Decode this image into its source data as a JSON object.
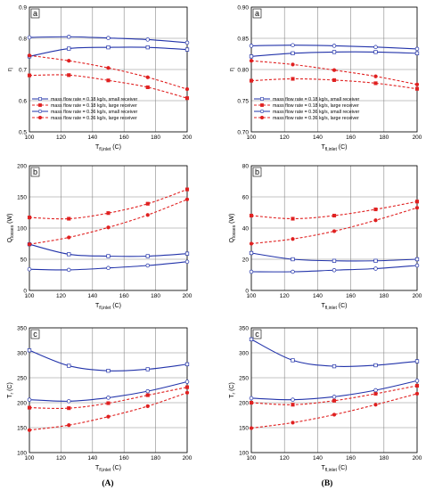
{
  "colors": {
    "blue": "#2233aa",
    "red": "#e02020",
    "grid": "#888888"
  },
  "column_labels": [
    "(A)",
    "(B)"
  ],
  "chart_data": [
    {
      "type": "line",
      "panel_tag": "a",
      "xlabel_main": "T",
      "xlabel_sub": "fl,inlet",
      "xlabel_unit": "(C)",
      "ylabel_main": "η",
      "ylabel_sub": "",
      "ylabel_unit": "",
      "xlim": [
        100,
        200
      ],
      "xticks": [
        100,
        120,
        140,
        160,
        180,
        200
      ],
      "ylim": [
        0.5,
        0.9
      ],
      "yticks": [
        0.5,
        0.6,
        0.7,
        0.8,
        0.9
      ],
      "ytick_labels": [
        "0.5",
        "0.6",
        "0.7",
        "0.8",
        "0.9"
      ],
      "grid": true,
      "legend": "bottom-left",
      "series": [
        {
          "name": "mass flow rate = 0.18 kg/s, small receiver",
          "color": "blue",
          "dash": false,
          "marker": "square",
          "x": [
            100,
            125,
            150,
            175,
            200
          ],
          "y": [
            0.742,
            0.767,
            0.771,
            0.771,
            0.764
          ]
        },
        {
          "name": "mass flow rate = 0.18 kg/s, large receiver",
          "color": "red",
          "dash": true,
          "marker": "square",
          "x": [
            100,
            125,
            150,
            175,
            200
          ],
          "y": [
            0.681,
            0.682,
            0.665,
            0.643,
            0.608
          ]
        },
        {
          "name": "mass flow rate = 0.36 kg/s, small receiver",
          "color": "blue",
          "dash": false,
          "marker": "circle",
          "x": [
            100,
            125,
            150,
            175,
            200
          ],
          "y": [
            0.803,
            0.805,
            0.801,
            0.796,
            0.786
          ]
        },
        {
          "name": "mass flow rate = 0.36 kg/s, large receiver",
          "color": "red",
          "dash": true,
          "marker": "circle",
          "x": [
            100,
            125,
            150,
            175,
            200
          ],
          "y": [
            0.745,
            0.728,
            0.705,
            0.675,
            0.637
          ]
        }
      ]
    },
    {
      "type": "line",
      "panel_tag": "a",
      "xlabel_main": "T",
      "xlabel_sub": "fl,inlet",
      "xlabel_unit": "(C)",
      "ylabel_main": "η",
      "ylabel_sub": "",
      "ylabel_unit": "",
      "xlim": [
        100,
        200
      ],
      "xticks": [
        100,
        120,
        140,
        160,
        180,
        200
      ],
      "ylim": [
        0.7,
        0.9
      ],
      "yticks": [
        0.7,
        0.75,
        0.8,
        0.85,
        0.9
      ],
      "ytick_labels": [
        "0.70",
        "0.75",
        "0.80",
        "0.85",
        "0.90"
      ],
      "grid": true,
      "legend": "bottom-left",
      "series": [
        {
          "name": "mass flow rate = 0.18 kg/s, small receiver",
          "color": "blue",
          "dash": false,
          "marker": "square",
          "x": [
            100,
            125,
            150,
            175,
            200
          ],
          "y": [
            0.821,
            0.826,
            0.828,
            0.828,
            0.826
          ]
        },
        {
          "name": "mass flow rate = 0.18 kg/s, large receiver",
          "color": "red",
          "dash": true,
          "marker": "square",
          "x": [
            100,
            125,
            150,
            175,
            200
          ],
          "y": [
            0.782,
            0.785,
            0.783,
            0.778,
            0.769
          ]
        },
        {
          "name": "mass flow rate = 0.36 kg/s, small receiver",
          "color": "blue",
          "dash": false,
          "marker": "circle",
          "x": [
            100,
            125,
            150,
            175,
            200
          ],
          "y": [
            0.838,
            0.839,
            0.838,
            0.836,
            0.833
          ]
        },
        {
          "name": "mass flow rate = 0.36 kg/s, large receiver",
          "color": "red",
          "dash": true,
          "marker": "circle",
          "x": [
            100,
            125,
            150,
            175,
            200
          ],
          "y": [
            0.814,
            0.808,
            0.799,
            0.789,
            0.776
          ]
        }
      ]
    },
    {
      "type": "line",
      "panel_tag": "b",
      "xlabel_main": "T",
      "xlabel_sub": "fl,inlet",
      "xlabel_unit": "(C)",
      "ylabel_main": "Q",
      "ylabel_sub": "losses",
      "ylabel_unit": "(W)",
      "xlim": [
        100,
        200
      ],
      "xticks": [
        100,
        120,
        140,
        160,
        180,
        200
      ],
      "ylim": [
        0,
        200
      ],
      "yticks": [
        0,
        50,
        100,
        150,
        200
      ],
      "ytick_labels": [
        "0",
        "50",
        "100",
        "150",
        "200"
      ],
      "grid": true,
      "legend": "none",
      "series": [
        {
          "color": "blue",
          "dash": false,
          "marker": "square",
          "x": [
            100,
            125,
            150,
            175,
            200
          ],
          "y": [
            74,
            58,
            55,
            55,
            59
          ]
        },
        {
          "color": "red",
          "dash": true,
          "marker": "square",
          "x": [
            100,
            125,
            150,
            175,
            200
          ],
          "y": [
            117,
            115,
            124,
            139,
            162
          ]
        },
        {
          "color": "blue",
          "dash": false,
          "marker": "circle",
          "x": [
            100,
            125,
            150,
            175,
            200
          ],
          "y": [
            34,
            33,
            36,
            40,
            46
          ]
        },
        {
          "color": "red",
          "dash": true,
          "marker": "circle",
          "x": [
            100,
            125,
            150,
            175,
            200
          ],
          "y": [
            74,
            85,
            101,
            121,
            146
          ]
        }
      ]
    },
    {
      "type": "line",
      "panel_tag": "b",
      "xlabel_main": "T",
      "xlabel_sub": "fl,inlet",
      "xlabel_unit": "(C)",
      "ylabel_main": "Q",
      "ylabel_sub": "losses",
      "ylabel_unit": "(W)",
      "xlim": [
        100,
        200
      ],
      "xticks": [
        100,
        120,
        140,
        160,
        180,
        200
      ],
      "ylim": [
        0,
        80
      ],
      "yticks": [
        0,
        20,
        40,
        60,
        80
      ],
      "ytick_labels": [
        "0",
        "20",
        "40",
        "60",
        "80"
      ],
      "grid": true,
      "legend": "none",
      "series": [
        {
          "color": "blue",
          "dash": false,
          "marker": "square",
          "x": [
            100,
            125,
            150,
            175,
            200
          ],
          "y": [
            24,
            20,
            19,
            19,
            20
          ]
        },
        {
          "color": "red",
          "dash": true,
          "marker": "square",
          "x": [
            100,
            125,
            150,
            175,
            200
          ],
          "y": [
            48,
            46,
            48,
            52,
            57
          ]
        },
        {
          "color": "blue",
          "dash": false,
          "marker": "circle",
          "x": [
            100,
            125,
            150,
            175,
            200
          ],
          "y": [
            12,
            12,
            13,
            14,
            16
          ]
        },
        {
          "color": "red",
          "dash": true,
          "marker": "circle",
          "x": [
            100,
            125,
            150,
            175,
            200
          ],
          "y": [
            30,
            33,
            38,
            45,
            53
          ]
        }
      ]
    },
    {
      "type": "line",
      "panel_tag": "c",
      "xlabel_main": "T",
      "xlabel_sub": "fl,inlet",
      "xlabel_unit": "(C)",
      "ylabel_main": "T",
      "ylabel_sub": "r",
      "ylabel_unit": "(C)",
      "xlim": [
        100,
        200
      ],
      "xticks": [
        100,
        120,
        140,
        160,
        180,
        200
      ],
      "ylim": [
        100,
        350
      ],
      "yticks": [
        100,
        150,
        200,
        250,
        300,
        350
      ],
      "ytick_labels": [
        "100",
        "150",
        "200",
        "250",
        "300",
        "350"
      ],
      "grid": true,
      "legend": "none",
      "series": [
        {
          "color": "blue",
          "dash": false,
          "marker": "square",
          "x": [
            100,
            125,
            150,
            175,
            200
          ],
          "y": [
            305,
            274,
            264,
            267,
            277
          ]
        },
        {
          "color": "red",
          "dash": true,
          "marker": "square",
          "x": [
            100,
            125,
            150,
            175,
            200
          ],
          "y": [
            190,
            189,
            199,
            215,
            231
          ]
        },
        {
          "color": "blue",
          "dash": false,
          "marker": "circle",
          "x": [
            100,
            125,
            150,
            175,
            200
          ],
          "y": [
            206,
            203,
            210,
            223,
            242
          ]
        },
        {
          "color": "red",
          "dash": true,
          "marker": "circle",
          "x": [
            100,
            125,
            150,
            175,
            200
          ],
          "y": [
            145,
            155,
            172,
            193,
            220
          ]
        }
      ]
    },
    {
      "type": "line",
      "panel_tag": "c",
      "xlabel_main": "T",
      "xlabel_sub": "fl,inlet",
      "xlabel_unit": "(C)",
      "ylabel_main": "T",
      "ylabel_sub": "r",
      "ylabel_unit": "(C)",
      "xlim": [
        100,
        200
      ],
      "xticks": [
        100,
        120,
        140,
        160,
        180,
        200
      ],
      "ylim": [
        100,
        350
      ],
      "yticks": [
        100,
        150,
        200,
        250,
        300,
        350
      ],
      "ytick_labels": [
        "100",
        "150",
        "200",
        "250",
        "300",
        "350"
      ],
      "grid": true,
      "legend": "none",
      "series": [
        {
          "color": "blue",
          "dash": false,
          "marker": "square",
          "x": [
            100,
            125,
            150,
            175,
            200
          ],
          "y": [
            327,
            285,
            273,
            275,
            283
          ]
        },
        {
          "color": "red",
          "dash": true,
          "marker": "square",
          "x": [
            100,
            125,
            150,
            175,
            200
          ],
          "y": [
            200,
            196,
            204,
            218,
            234
          ]
        },
        {
          "color": "blue",
          "dash": false,
          "marker": "circle",
          "x": [
            100,
            125,
            150,
            175,
            200
          ],
          "y": [
            209,
            206,
            212,
            225,
            244
          ]
        },
        {
          "color": "red",
          "dash": true,
          "marker": "circle",
          "x": [
            100,
            125,
            150,
            175,
            200
          ],
          "y": [
            149,
            160,
            176,
            196,
            218
          ]
        }
      ]
    }
  ]
}
